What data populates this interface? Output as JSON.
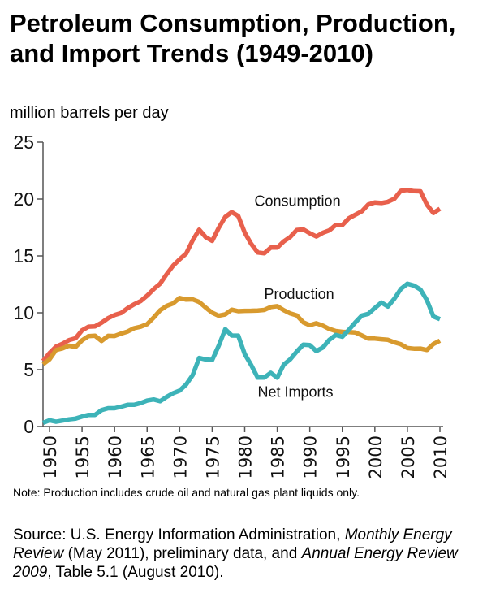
{
  "title": "Petroleum Consumption, Production, and Import Trends (1949-2010)",
  "unit_label": "million barrels per day",
  "note": "Note: Production includes crude oil and natural gas plant liquids only.",
  "source": {
    "prefix": "Source: U.S. Energy Information Administration, ",
    "italic1": "Monthly Energy Review",
    "mid": " (May 2011), preliminary data, and ",
    "italic2": "Annual Energy Review 2009",
    "suffix": ", Table 5.1 (August 2010)."
  },
  "chart_data": {
    "type": "line",
    "title": "Petroleum Consumption, Production, and Import Trends (1949-2010)",
    "xlabel": "",
    "ylabel": "million barrels per day",
    "xlim": [
      1949,
      2010
    ],
    "ylim": [
      0,
      25
    ],
    "yticks": [
      0,
      5,
      10,
      15,
      20,
      25
    ],
    "xticks": [
      1950,
      1955,
      1960,
      1965,
      1970,
      1975,
      1980,
      1985,
      1990,
      1995,
      2000,
      2005,
      2010
    ],
    "grid": false,
    "legend": "inline labels",
    "x": [
      1949,
      1950,
      1951,
      1952,
      1953,
      1954,
      1955,
      1956,
      1957,
      1958,
      1959,
      1960,
      1961,
      1962,
      1963,
      1964,
      1965,
      1966,
      1967,
      1968,
      1969,
      1970,
      1971,
      1972,
      1973,
      1974,
      1975,
      1976,
      1977,
      1978,
      1979,
      1980,
      1981,
      1982,
      1983,
      1984,
      1985,
      1986,
      1987,
      1988,
      1989,
      1990,
      1991,
      1992,
      1993,
      1994,
      1995,
      1996,
      1997,
      1998,
      1999,
      2000,
      2001,
      2002,
      2003,
      2004,
      2005,
      2006,
      2007,
      2008,
      2009,
      2010
    ],
    "series": [
      {
        "name": "Consumption",
        "color": "#e8604c",
        "values": [
          5.76,
          6.46,
          7.02,
          7.27,
          7.6,
          7.76,
          8.46,
          8.78,
          8.81,
          9.12,
          9.53,
          9.8,
          9.98,
          10.4,
          10.74,
          11.02,
          11.51,
          12.08,
          12.56,
          13.39,
          14.14,
          14.7,
          15.21,
          16.37,
          17.31,
          16.65,
          16.32,
          17.46,
          18.43,
          18.85,
          18.51,
          17.06,
          16.06,
          15.3,
          15.23,
          15.73,
          15.73,
          16.28,
          16.67,
          17.28,
          17.33,
          16.99,
          16.71,
          17.03,
          17.24,
          17.72,
          17.72,
          18.31,
          18.62,
          18.92,
          19.52,
          19.7,
          19.65,
          19.76,
          20.03,
          20.73,
          20.8,
          20.69,
          20.68,
          19.5,
          18.77,
          19.15
        ]
      },
      {
        "name": "Production",
        "color": "#d89a2e",
        "values": [
          5.48,
          5.91,
          6.72,
          6.87,
          7.11,
          6.99,
          7.58,
          7.95,
          7.98,
          7.52,
          7.97,
          7.96,
          8.17,
          8.35,
          8.64,
          8.77,
          9.01,
          9.58,
          10.22,
          10.6,
          10.83,
          11.3,
          11.16,
          11.18,
          10.95,
          10.46,
          10.01,
          9.74,
          9.86,
          10.27,
          10.14,
          10.17,
          10.18,
          10.2,
          10.25,
          10.51,
          10.58,
          10.23,
          9.94,
          9.77,
          9.16,
          8.91,
          9.08,
          8.87,
          8.58,
          8.39,
          8.32,
          8.3,
          8.27,
          8.01,
          7.73,
          7.73,
          7.67,
          7.62,
          7.4,
          7.23,
          6.9,
          6.84,
          6.85,
          6.73,
          7.26,
          7.55
        ]
      },
      {
        "name": "Net Imports",
        "color": "#3db3b8",
        "values": [
          0.32,
          0.55,
          0.42,
          0.52,
          0.63,
          0.69,
          0.88,
          1.02,
          1.02,
          1.44,
          1.61,
          1.61,
          1.74,
          1.91,
          1.91,
          2.06,
          2.28,
          2.38,
          2.22,
          2.61,
          2.93,
          3.16,
          3.7,
          4.52,
          6.03,
          5.89,
          5.85,
          7.09,
          8.56,
          8.0,
          7.99,
          6.37,
          5.4,
          4.3,
          4.31,
          4.72,
          4.29,
          5.44,
          5.91,
          6.59,
          7.2,
          7.16,
          6.63,
          6.94,
          7.62,
          8.05,
          7.89,
          8.5,
          9.16,
          9.76,
          9.91,
          10.42,
          10.9,
          10.55,
          11.24,
          12.1,
          12.55,
          12.39,
          12.04,
          11.11,
          9.67,
          9.44
        ]
      }
    ],
    "labels": [
      {
        "text": "Consumption",
        "series": "Consumption"
      },
      {
        "text": "Production",
        "series": "Production"
      },
      {
        "text": "Net Imports",
        "series": "Net Imports"
      }
    ]
  }
}
